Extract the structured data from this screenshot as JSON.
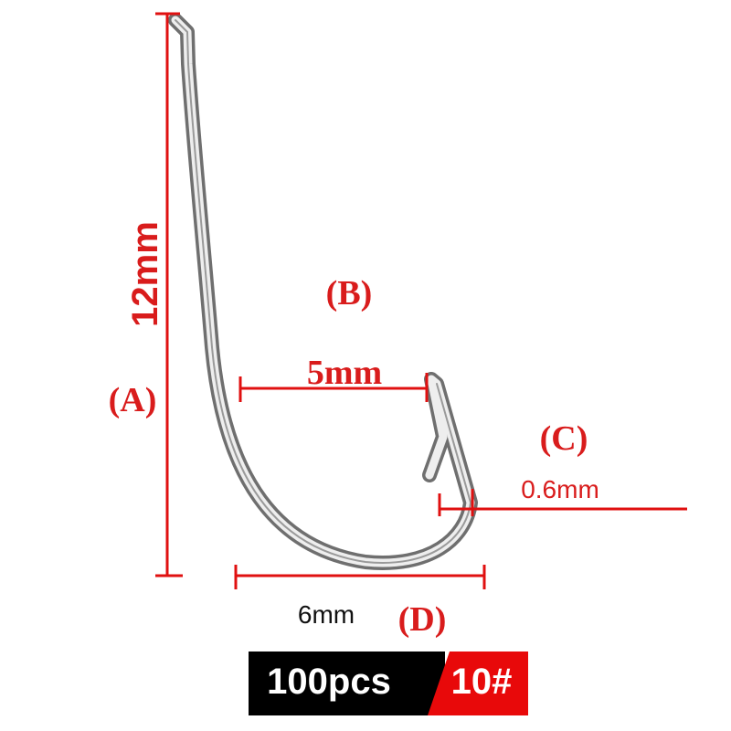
{
  "dimensions": {
    "a": {
      "label": "(A)",
      "size": "12mm"
    },
    "b": {
      "label": "(B)",
      "size": "5mm"
    },
    "c": {
      "label": "(C)",
      "size": "0.6mm"
    },
    "d": {
      "label": "(D)",
      "size": "6mm"
    }
  },
  "badge": {
    "quantity": "100pcs",
    "hook_size": "10#"
  }
}
